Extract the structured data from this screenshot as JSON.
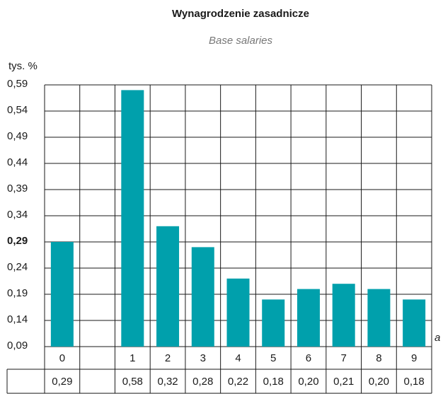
{
  "chart_data": {
    "type": "bar",
    "title": "Wynagrodzenie zasadnicze",
    "subtitle": "Base salaries",
    "y_label": "tys. %",
    "x_label": "a",
    "categories": [
      "0",
      null,
      "1",
      "2",
      "3",
      "4",
      "5",
      "6",
      "7",
      "8",
      "9"
    ],
    "values": [
      0.29,
      null,
      0.58,
      0.32,
      0.28,
      0.22,
      0.18,
      0.2,
      0.21,
      0.2,
      0.18
    ],
    "value_labels": [
      "0,29",
      null,
      "0,58",
      "0,32",
      "0,28",
      "0,22",
      "0,18",
      "0,20",
      "0,21",
      "0,20",
      "0,18"
    ],
    "color": "#00a0ac",
    "ylim": [
      0.09,
      0.59
    ],
    "yticks": [
      {
        "value": 0.09,
        "label": "0,09"
      },
      {
        "value": 0.14,
        "label": "0,14"
      },
      {
        "value": 0.19,
        "label": "0,19"
      },
      {
        "value": 0.24,
        "label": "0,24"
      },
      {
        "value": 0.29,
        "label": "0,29"
      },
      {
        "value": 0.34,
        "label": "0,34"
      },
      {
        "value": 0.39,
        "label": "0,39"
      },
      {
        "value": 0.44,
        "label": "0,44"
      },
      {
        "value": 0.49,
        "label": "0,49"
      },
      {
        "value": 0.54,
        "label": "0,54"
      },
      {
        "value": 0.59,
        "label": "0,59"
      }
    ],
    "bold_ytick": 0.29,
    "grid": true
  }
}
